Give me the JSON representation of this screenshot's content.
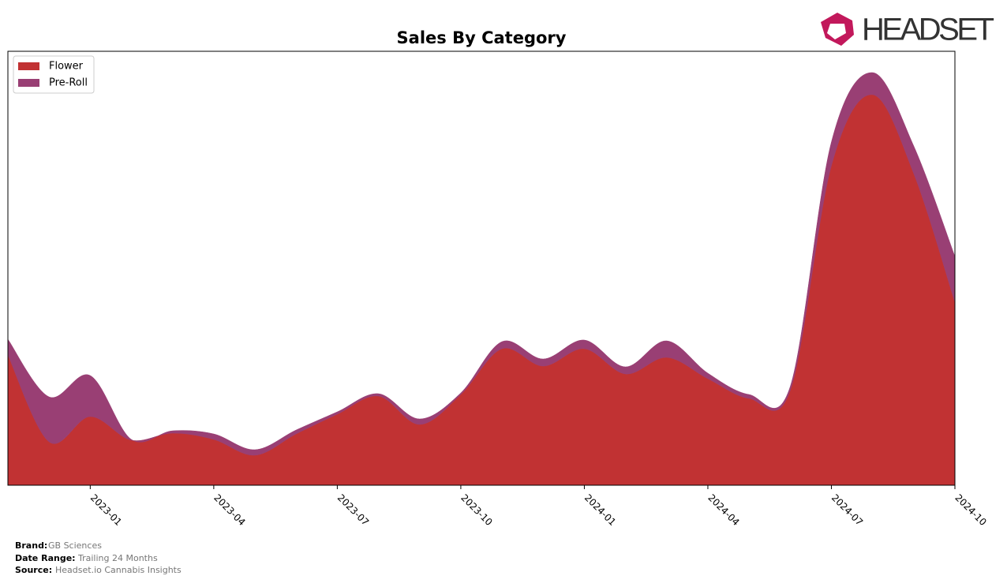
{
  "logo": "HEADSET",
  "footer": {
    "brand_label": "Brand:",
    "brand": "GB Sciences",
    "range_label": "Date Range:",
    "range": "Trailing 24 Months",
    "source_label": "Source:",
    "source": "Headset.io Cannabis Insights"
  },
  "chart_data": {
    "type": "stacked-area",
    "title": "Sales By Category",
    "x": [
      "2022-11",
      "2022-12",
      "2023-01",
      "2023-02",
      "2023-03",
      "2023-04",
      "2023-05",
      "2023-06",
      "2023-07",
      "2023-08",
      "2023-09",
      "2023-10",
      "2023-11",
      "2023-12",
      "2024-01",
      "2024-02",
      "2024-03",
      "2024-04",
      "2024-05",
      "2024-06",
      "2024-07",
      "2024-08",
      "2024-09",
      "2024-10"
    ],
    "xticks": [
      "2023-01",
      "2023-04",
      "2023-07",
      "2023-10",
      "2024-01",
      "2024-04",
      "2024-07",
      "2024-10"
    ],
    "ylim": [
      0,
      550
    ],
    "legend": "upper left",
    "series": [
      {
        "name": "Flower",
        "color": "#c13233",
        "values": [
          165,
          55,
          87,
          57,
          66,
          58,
          38,
          65,
          90,
          113,
          77,
          115,
          173,
          151,
          173,
          141,
          162,
          135,
          110,
          120,
          405,
          495,
          395,
          232
        ]
      },
      {
        "name": "Pre-Roll",
        "color": "#993f74",
        "values": [
          20,
          57,
          52,
          1,
          3,
          7,
          7,
          5,
          3,
          3,
          7,
          2,
          9,
          9,
          11,
          9,
          21,
          7,
          5,
          5,
          30,
          28,
          35,
          58
        ]
      }
    ]
  }
}
